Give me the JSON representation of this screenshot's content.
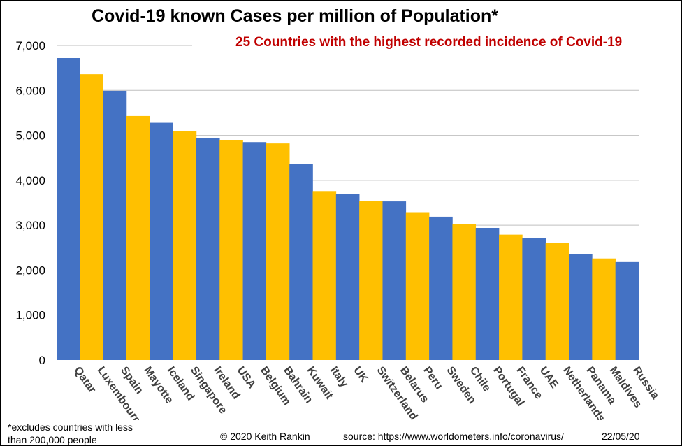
{
  "chart_data": {
    "type": "bar",
    "title": "Covid-19 known Cases per million of Population*",
    "subtitle": "25 Countries with the highest recorded incidence of Covid-19",
    "categories": [
      "Qatar",
      "Luxembourg",
      "Spain",
      "Mayotte",
      "Iceland",
      "Singapore",
      "Ireland",
      "USA",
      "Belgium",
      "Bahrain",
      "Kuwait",
      "Italy",
      "UK",
      "Switzerland",
      "Belarus",
      "Peru",
      "Sweden",
      "Chile",
      "Portugal",
      "France",
      "UAE",
      "Netherlands",
      "Panama",
      "Maldives",
      "Russia"
    ],
    "values": [
      6720,
      6360,
      5990,
      5430,
      5280,
      5100,
      4940,
      4900,
      4850,
      4820,
      4370,
      3760,
      3700,
      3540,
      3530,
      3290,
      3190,
      3020,
      2940,
      2790,
      2720,
      2610,
      2350,
      2260,
      2180
    ],
    "ylim": [
      0,
      7000
    ],
    "yticks": [
      "0",
      "1,000",
      "2,000",
      "3,000",
      "4,000",
      "5,000",
      "6,000",
      "7,000"
    ],
    "grid": true,
    "legend": "none",
    "xlabel": "",
    "ylabel": ""
  },
  "colors": {
    "blue": "#4472C4",
    "gold": "#FFC000",
    "subtitle": "#C00000",
    "grid": "#BFBFBF"
  },
  "footnote": "*excludes countries with less than 200,000 people",
  "copyright": "© 2020  Keith Rankin",
  "source": "source: https://www.worldometers.info/coronavirus/",
  "date": "22/05/20"
}
